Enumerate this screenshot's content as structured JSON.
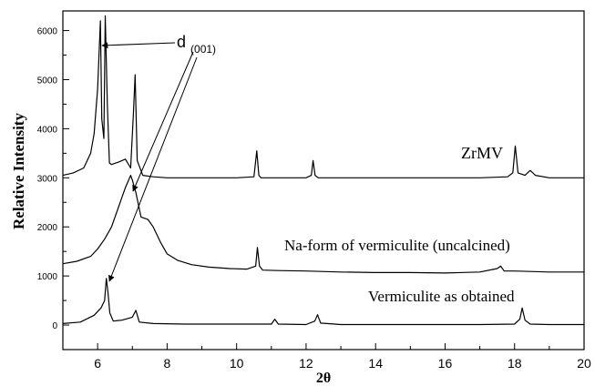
{
  "chart_data": {
    "type": "line",
    "xlabel": "2θ",
    "ylabel": "Relative Intensity",
    "xlim": [
      5,
      20
    ],
    "ylim": [
      -500,
      6400
    ],
    "xticks": [
      "6",
      "8",
      "10",
      "12",
      "14",
      "16",
      "18",
      "20"
    ],
    "yticks": [
      "0",
      "1000",
      "2000",
      "3000",
      "4000",
      "5000",
      "6000"
    ],
    "grid": false,
    "annotation": {
      "main": "d",
      "sub": "(001)"
    },
    "series": [
      {
        "name": "ZrMV",
        "x": [
          5.0,
          5.3,
          5.6,
          5.8,
          5.9,
          6.0,
          6.08,
          6.12,
          6.18,
          6.22,
          6.28,
          6.34,
          6.4,
          6.6,
          6.8,
          6.95,
          7.03,
          7.08,
          7.14,
          7.3,
          7.6,
          8.0,
          9.0,
          10.0,
          10.5,
          10.58,
          10.64,
          10.7,
          11.0,
          12.0,
          12.15,
          12.2,
          12.26,
          12.35,
          13.0,
          14.0,
          15.0,
          16.0,
          17.0,
          17.8,
          17.95,
          18.02,
          18.1,
          18.3,
          18.45,
          18.6,
          19.0,
          20.0
        ],
        "y": [
          3050,
          3100,
          3200,
          3500,
          3900,
          4800,
          6200,
          4200,
          3800,
          6300,
          4500,
          3300,
          3270,
          3320,
          3380,
          3200,
          4300,
          5100,
          3350,
          3050,
          3020,
          3000,
          3000,
          3000,
          3020,
          3550,
          3050,
          3000,
          3000,
          3000,
          3050,
          3350,
          3050,
          3000,
          3000,
          3000,
          3000,
          3000,
          3000,
          3020,
          3100,
          3650,
          3100,
          3050,
          3150,
          3050,
          3000,
          3000
        ]
      },
      {
        "name": "Na-form of vermiculite (uncalcined)",
        "x": [
          5.0,
          5.4,
          5.8,
          6.0,
          6.2,
          6.4,
          6.6,
          6.8,
          6.95,
          7.0,
          7.1,
          7.25,
          7.45,
          7.6,
          7.8,
          8.0,
          8.3,
          8.7,
          9.2,
          9.8,
          10.3,
          10.55,
          10.6,
          10.66,
          10.75,
          11.2,
          12.0,
          13.0,
          14.0,
          15.0,
          16.0,
          17.0,
          17.5,
          17.6,
          17.7,
          18.0,
          19.0,
          20.0
        ],
        "y": [
          1250,
          1300,
          1400,
          1550,
          1750,
          2000,
          2400,
          2800,
          3050,
          2950,
          2700,
          2200,
          2150,
          2000,
          1700,
          1450,
          1320,
          1230,
          1180,
          1150,
          1140,
          1200,
          1580,
          1200,
          1120,
          1110,
          1100,
          1080,
          1070,
          1070,
          1060,
          1080,
          1150,
          1200,
          1100,
          1100,
          1080,
          1080
        ]
      },
      {
        "name": "Vermiculite as obtained",
        "x": [
          5.0,
          5.5,
          5.9,
          6.1,
          6.2,
          6.25,
          6.3,
          6.35,
          6.45,
          6.7,
          7.0,
          7.1,
          7.2,
          7.6,
          8.5,
          9.5,
          10.5,
          11.0,
          11.1,
          11.2,
          12.0,
          12.25,
          12.33,
          12.42,
          13.0,
          14.0,
          15.0,
          16.0,
          17.0,
          18.0,
          18.15,
          18.22,
          18.3,
          18.45,
          19.0,
          20.0
        ],
        "y": [
          30,
          60,
          200,
          350,
          500,
          950,
          650,
          250,
          80,
          100,
          160,
          300,
          60,
          30,
          20,
          20,
          20,
          20,
          120,
          20,
          10,
          80,
          210,
          40,
          10,
          10,
          10,
          10,
          10,
          20,
          120,
          350,
          100,
          20,
          10,
          10
        ]
      }
    ]
  }
}
